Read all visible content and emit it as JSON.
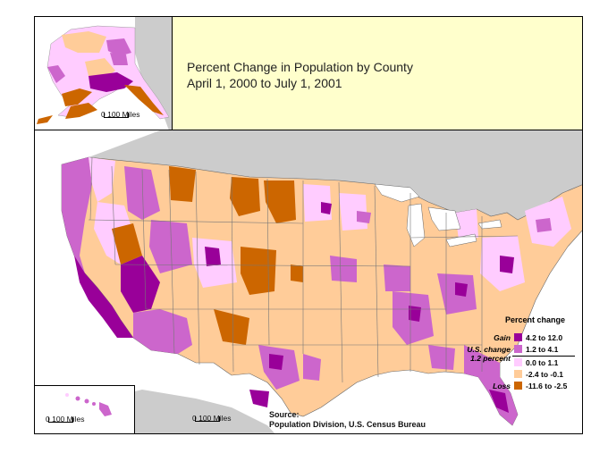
{
  "title": {
    "line1": "Percent Change in Population by County",
    "line2": "April 1, 2000 to July 1, 2001"
  },
  "scales": {
    "alaska": "0   100 Miles",
    "hawaii": "0   100 Miles",
    "conus": "0   100 Miles"
  },
  "source": {
    "label": "Source:",
    "text": "Population Division, U.S. Census Bureau"
  },
  "legend": {
    "title": "Percent change",
    "gain_label": "Gain",
    "us_change_label": "U.S. change",
    "us_change_value": "1.2 percent",
    "loss_label": "Loss",
    "classes": [
      {
        "range": "4.2 to 12.0",
        "color": "#990099"
      },
      {
        "range": "1.2 to 4.1",
        "color": "#cc66cc"
      },
      {
        "range": "0.0 to 1.1",
        "color": "#ffccff"
      },
      {
        "range": "-2.4 to -0.1",
        "color": "#ffcc99"
      },
      {
        "range": "-11.6 to -2.5",
        "color": "#cc6600"
      }
    ]
  },
  "colors": {
    "land_outside": "#cccccc",
    "water": "#ffffff",
    "title_bg": "#ffffcc"
  }
}
